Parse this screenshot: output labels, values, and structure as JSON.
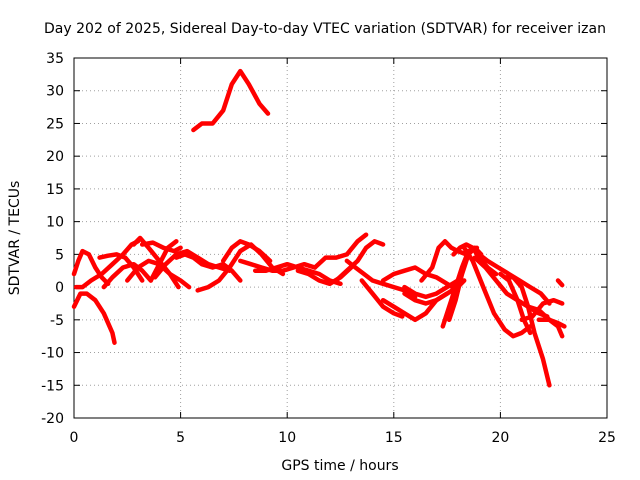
{
  "chart_data": {
    "type": "line",
    "title": "Day 202 of 2025, Sidereal Day-to-day VTEC variation (SDTVAR) for receiver izan",
    "xlabel": "GPS time / hours",
    "ylabel": "SDTVAR / TECUs",
    "xlim": [
      0,
      25
    ],
    "ylim": [
      -20,
      35
    ],
    "xticks": [
      0,
      5,
      10,
      15,
      20,
      25
    ],
    "yticks": [
      -20,
      -15,
      -10,
      -5,
      0,
      5,
      10,
      15,
      20,
      25,
      30,
      35
    ],
    "grid": true,
    "color": "#ff0000",
    "series": [
      {
        "name": "s01",
        "x": [
          0,
          0.3,
          0.6,
          1.0,
          1.4,
          1.8,
          1.9
        ],
        "y": [
          -3,
          -1,
          -1,
          -2,
          -4,
          -7,
          -8.5
        ]
      },
      {
        "name": "s02",
        "x": [
          0,
          0.2,
          0.4,
          0.7,
          1.0,
          1.3,
          1.6
        ],
        "y": [
          2,
          4,
          5.5,
          5,
          3,
          1.5,
          0.5
        ]
      },
      {
        "name": "s03",
        "x": [
          0.1,
          0.4,
          0.8,
          1.3,
          1.8,
          2.3,
          2.7,
          3.0
        ],
        "y": [
          0,
          0,
          1,
          2,
          3.5,
          5,
          6.5,
          7
        ]
      },
      {
        "name": "s04",
        "x": [
          1.2,
          1.6,
          2.0,
          2.4,
          2.8,
          3.2
        ],
        "y": [
          4.5,
          4.8,
          5,
          4.5,
          3,
          1
        ]
      },
      {
        "name": "s05",
        "x": [
          1.4,
          1.8,
          2.3,
          2.8,
          3.2,
          3.6
        ],
        "y": [
          0,
          1.5,
          3,
          3.5,
          2.5,
          1
        ]
      },
      {
        "name": "s06",
        "x": [
          2.8,
          3.1,
          3.5,
          4.0,
          4.5,
          4.9
        ],
        "y": [
          6.5,
          7.5,
          6,
          4,
          2,
          0
        ]
      },
      {
        "name": "s07",
        "x": [
          2.5,
          3.0,
          3.5,
          4.0,
          4.5,
          5.0,
          5.4
        ],
        "y": [
          1,
          3,
          4,
          3.5,
          2,
          1,
          0
        ]
      },
      {
        "name": "s08",
        "x": [
          3.2,
          3.7,
          4.2,
          4.7,
          5.0
        ],
        "y": [
          6.5,
          6.8,
          6,
          5.5,
          6
        ]
      },
      {
        "name": "s09",
        "x": [
          3.6,
          4.0,
          4.4,
          4.8
        ],
        "y": [
          1,
          3.5,
          6,
          7
        ]
      },
      {
        "name": "s10",
        "x": [
          3.8,
          4.3,
          4.8,
          5.3,
          5.8,
          6.3,
          6.8,
          7.3
        ],
        "y": [
          1.5,
          3.5,
          5,
          5.5,
          4.5,
          3.5,
          3,
          2.5
        ]
      },
      {
        "name": "s11",
        "x": [
          4.8,
          5.2,
          5.6,
          6.0,
          6.5,
          7.0,
          7.4,
          7.8
        ],
        "y": [
          4.5,
          5,
          4.5,
          3.5,
          3,
          3.5,
          2.5,
          1
        ]
      },
      {
        "name": "s12",
        "x": [
          5.8,
          6.3,
          6.8,
          7.3,
          7.8,
          8.3,
          8.8,
          9.3,
          9.8
        ],
        "y": [
          -0.5,
          0,
          1,
          3,
          5.5,
          6.5,
          5,
          3,
          2
        ]
      },
      {
        "name": "s13",
        "x": [
          7.0,
          7.4,
          7.8,
          8.2,
          8.7,
          9.2
        ],
        "y": [
          4,
          6,
          7,
          6.5,
          5.5,
          4
        ]
      },
      {
        "name": "s14",
        "x": [
          7.8,
          8.3,
          8.8,
          9.3,
          9.8,
          10.3,
          10.8,
          11.3
        ],
        "y": [
          4,
          3.5,
          3,
          2.5,
          2.5,
          3,
          3.5,
          3
        ]
      },
      {
        "name": "s15",
        "x": [
          8.5,
          9.0,
          9.5,
          10.0,
          10.5,
          11.0,
          11.5,
          12.0,
          12.5
        ],
        "y": [
          2.5,
          2.5,
          3,
          3.5,
          3,
          2.5,
          2,
          1,
          0.5
        ]
      },
      {
        "name": "s16",
        "x": [
          10.5,
          11.0,
          11.5,
          12.0,
          12.5,
          13.0
        ],
        "y": [
          2.5,
          2,
          1,
          0.5,
          1.5,
          3
        ]
      },
      {
        "name": "s17",
        "x": [
          11.3,
          11.8,
          12.3,
          12.8,
          13.3,
          13.7
        ],
        "y": [
          3,
          4.5,
          4.5,
          5,
          7,
          8
        ]
      },
      {
        "name": "s18",
        "x": [
          12.3,
          12.8,
          13.3,
          13.7,
          14.1,
          14.5
        ],
        "y": [
          1,
          2.5,
          4,
          6,
          7,
          6.5
        ]
      },
      {
        "name": "s19",
        "x": [
          12.8,
          13.2,
          13.6,
          14.0,
          14.5,
          15.0,
          15.5,
          16.0
        ],
        "y": [
          4,
          3,
          2,
          1,
          0.5,
          0,
          -0.5,
          -1.5
        ]
      },
      {
        "name": "s20",
        "x": [
          13.5,
          14.0,
          14.5,
          15.0,
          15.4
        ],
        "y": [
          1,
          -1,
          -3,
          -4,
          -4.5
        ]
      },
      {
        "name": "s21",
        "x": [
          14.5,
          15.0,
          15.5,
          16.0,
          16.5,
          17.0,
          17.5
        ],
        "y": [
          -2,
          -3,
          -4,
          -5,
          -4,
          -2,
          -1
        ]
      },
      {
        "name": "s22",
        "x": [
          14.5,
          15.0,
          15.5,
          16.0,
          16.5,
          17.0,
          17.5,
          18.0
        ],
        "y": [
          1,
          2,
          2.5,
          3,
          2,
          1.5,
          0.5,
          -0.5
        ]
      },
      {
        "name": "s23",
        "x": [
          15.5,
          16.0,
          16.5,
          17.0,
          17.5,
          18.0
        ],
        "y": [
          0,
          -1,
          -1.5,
          -1,
          0,
          1
        ]
      },
      {
        "name": "s24",
        "x": [
          15.5,
          16.0,
          16.5,
          17.0,
          17.5,
          18.0,
          18.3
        ],
        "y": [
          -1,
          -2,
          -2.5,
          -2,
          -1,
          0,
          1
        ]
      },
      {
        "name": "s25",
        "x": [
          16.3,
          16.8,
          17.1,
          17.4,
          17.7,
          18.0,
          18.4
        ],
        "y": [
          1,
          3,
          6,
          7,
          6,
          5.5,
          5
        ]
      },
      {
        "name": "s26",
        "x": [
          17.3,
          17.6,
          17.9,
          18.2,
          18.5,
          18.9
        ],
        "y": [
          -6,
          -3,
          0,
          3,
          5.5,
          6
        ]
      },
      {
        "name": "s27",
        "x": [
          17.6,
          17.9,
          18.2,
          18.5,
          18.8,
          19.1
        ],
        "y": [
          -5,
          -2,
          2,
          5,
          6,
          5
        ]
      },
      {
        "name": "s28",
        "x": [
          17.8,
          18.1,
          18.4,
          18.7,
          19.0,
          19.4,
          19.8
        ],
        "y": [
          5,
          6,
          6.5,
          6,
          4.5,
          3,
          2
        ]
      },
      {
        "name": "s29",
        "x": [
          18.3,
          18.7,
          19.2,
          19.7,
          20.2,
          20.6,
          21.0,
          21.4
        ],
        "y": [
          6,
          4,
          0,
          -4,
          -6.5,
          -7.5,
          -7,
          -6
        ]
      },
      {
        "name": "s30",
        "x": [
          18.8,
          19.3,
          19.8,
          20.3,
          20.8,
          21.3,
          21.8,
          22.2
        ],
        "y": [
          4.5,
          3,
          1,
          -1,
          -2,
          -3,
          -4,
          -4.5
        ]
      },
      {
        "name": "s31",
        "x": [
          19.0,
          19.4,
          19.9,
          20.4,
          20.9,
          21.4,
          21.9,
          22.3
        ],
        "y": [
          5,
          4,
          3,
          2,
          1,
          0,
          -1,
          -2.5
        ]
      },
      {
        "name": "s32",
        "x": [
          20.0,
          20.4,
          20.8,
          21.1,
          21.4
        ],
        "y": [
          2,
          1,
          -2,
          -5,
          -7
        ]
      },
      {
        "name": "s33",
        "x": [
          20.3,
          20.6,
          21.0,
          21.3,
          21.6,
          22.0,
          22.3
        ],
        "y": [
          1.5,
          1.5,
          0,
          -3,
          -7,
          -11,
          -15
        ]
      },
      {
        "name": "s34",
        "x": [
          21.0,
          21.5,
          22.0,
          22.5,
          22.9
        ],
        "y": [
          -5,
          -4.5,
          -2.5,
          -2,
          -2.5
        ]
      },
      {
        "name": "s35",
        "x": [
          21.3,
          21.8,
          22.3,
          22.7,
          22.9
        ],
        "y": [
          -3,
          -3.5,
          -5,
          -6,
          -7.5
        ]
      },
      {
        "name": "s36",
        "x": [
          21.8,
          22.3,
          22.7,
          23.0
        ],
        "y": [
          -5,
          -5,
          -5.5,
          -6
        ]
      },
      {
        "name": "s37",
        "x": [
          22.7,
          22.9
        ],
        "y": [
          1,
          0.3
        ]
      },
      {
        "name": "s38",
        "x": [
          5.6,
          6.0,
          6.5,
          7.0,
          7.4,
          7.8,
          8.2,
          8.7,
          9.1
        ],
        "y": [
          24,
          25,
          25,
          27,
          31,
          33,
          31,
          28,
          26.5
        ]
      }
    ]
  }
}
